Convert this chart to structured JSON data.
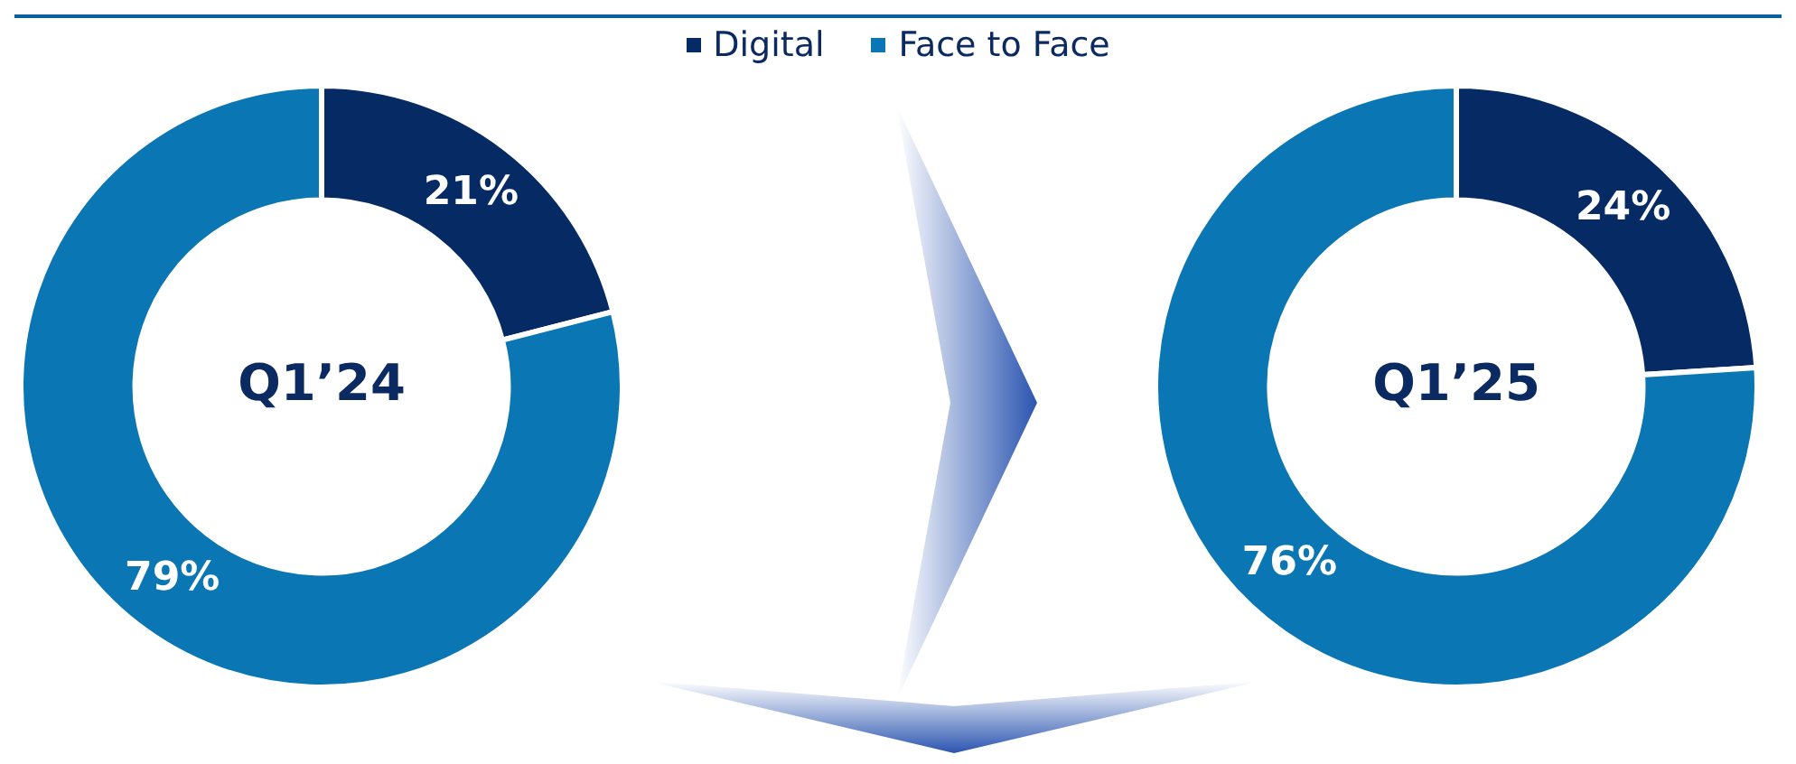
{
  "chart_data": [
    {
      "type": "donut",
      "title": "Q1’24",
      "categories": [
        "Digital",
        "Face to Face"
      ],
      "values": [
        21,
        79
      ],
      "value_labels": [
        "21%",
        "79%"
      ],
      "colors": [
        "#062a63",
        "#0a76b3"
      ],
      "legend": "top"
    },
    {
      "type": "donut",
      "title": "Q1’25",
      "categories": [
        null,
        null
      ],
      "values": [
        24,
        76
      ],
      "value_labels": [
        "24%",
        "76%"
      ],
      "colors": [
        "#062a63",
        "#0a76b3"
      ]
    }
  ]
}
